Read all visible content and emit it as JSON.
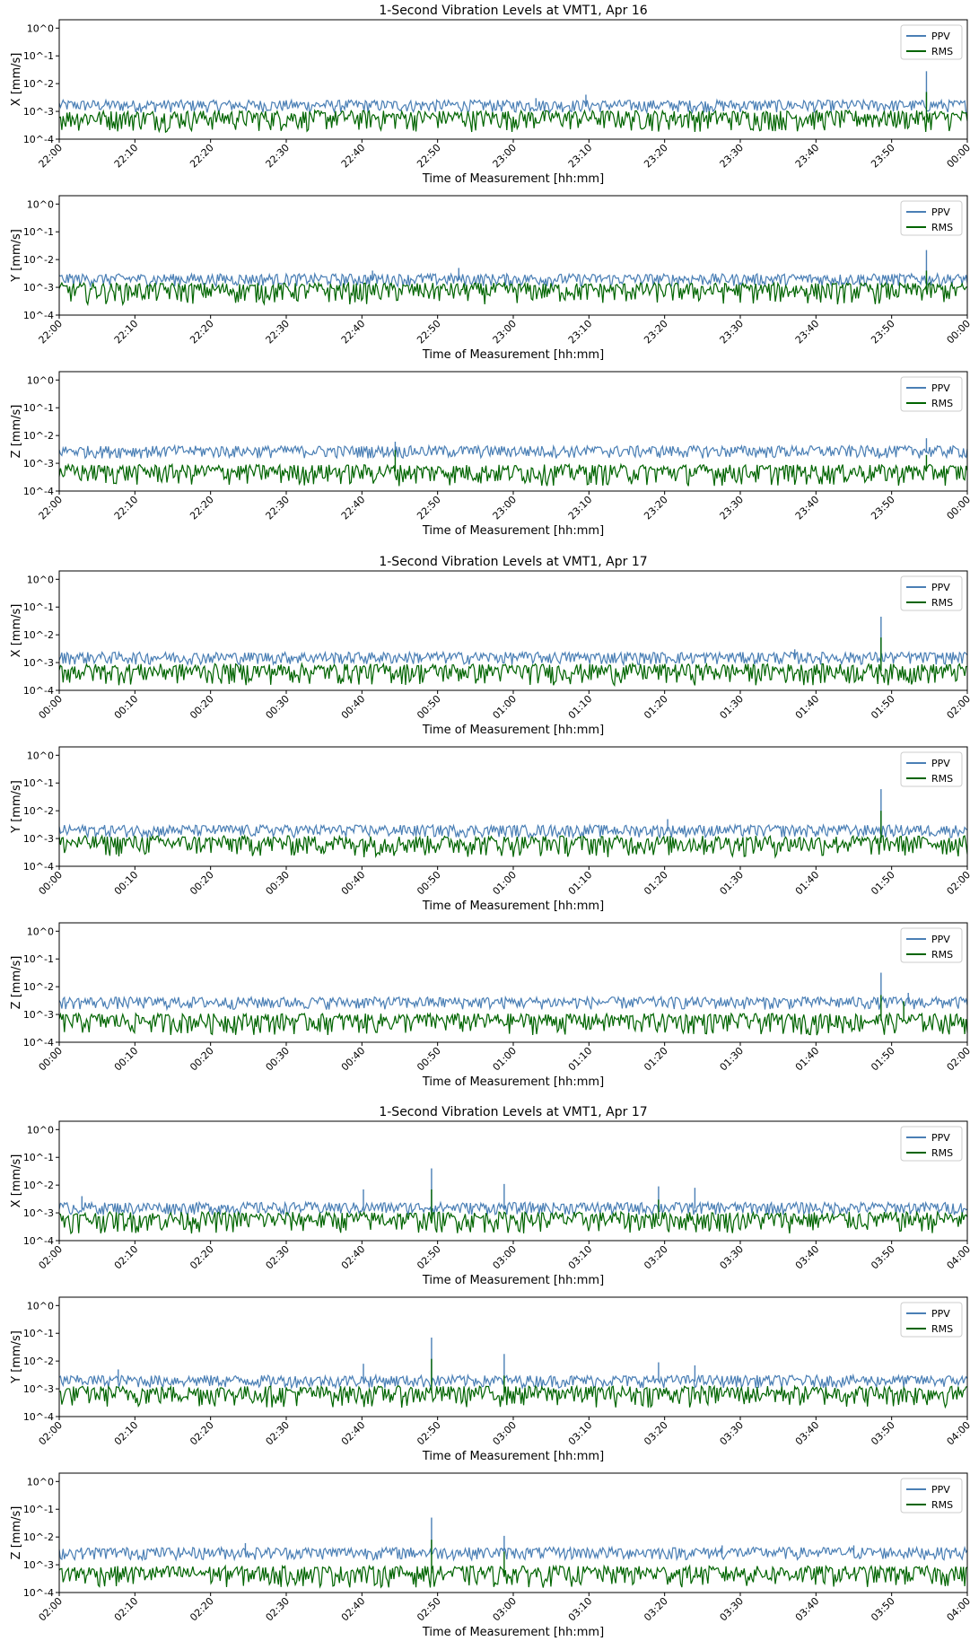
{
  "chart_data": [
    {
      "type": "line",
      "title": "1-Second Vibration Levels at VMT1, Apr 16",
      "ylabel": "X [mm/s]",
      "xlabel": "Time of Measurement [hh:mm]",
      "yscale": "log",
      "ylim": [
        0.0001,
        2
      ],
      "yticks": [
        "10^0",
        "10^-1",
        "10^-2",
        "10^-3",
        "10^-4"
      ],
      "xticks": [
        "22:00",
        "22:10",
        "22:20",
        "22:30",
        "22:40",
        "22:50",
        "23:00",
        "23:10",
        "23:20",
        "23:30",
        "23:40",
        "23:50",
        "00:00"
      ],
      "legend": "top-right",
      "series": [
        {
          "name": "PPV",
          "color": "#4a7fb5",
          "baseline": 0.0015,
          "spikes": [
            [
              95.5,
              0.028
            ],
            [
              58.0,
              0.004
            ],
            [
              52.5,
              0.003
            ]
          ]
        },
        {
          "name": "RMS",
          "color": "#006400",
          "baseline": 0.0006,
          "spikes": [
            [
              95.5,
              0.005
            ]
          ]
        }
      ]
    },
    {
      "type": "line",
      "title": "",
      "ylabel": "Y [mm/s]",
      "xlabel": "Time of Measurement [hh:mm]",
      "yscale": "log",
      "ylim": [
        0.0001,
        2
      ],
      "yticks": [
        "10^0",
        "10^-1",
        "10^-2",
        "10^-3",
        "10^-4"
      ],
      "xticks": [
        "22:00",
        "22:10",
        "22:20",
        "22:30",
        "22:40",
        "22:50",
        "23:00",
        "23:10",
        "23:20",
        "23:30",
        "23:40",
        "23:50",
        "00:00"
      ],
      "legend": "top-right",
      "series": [
        {
          "name": "PPV",
          "color": "#4a7fb5",
          "baseline": 0.0018,
          "spikes": [
            [
              95.5,
              0.022
            ],
            [
              44.0,
              0.005
            ],
            [
              34.5,
              0.004
            ]
          ]
        },
        {
          "name": "RMS",
          "color": "#006400",
          "baseline": 0.0008,
          "spikes": [
            [
              95.5,
              0.004
            ]
          ]
        }
      ]
    },
    {
      "type": "line",
      "title": "",
      "ylabel": "Z [mm/s]",
      "xlabel": "Time of Measurement [hh:mm]",
      "yscale": "log",
      "ylim": [
        0.0001,
        2
      ],
      "yticks": [
        "10^0",
        "10^-1",
        "10^-2",
        "10^-3",
        "10^-4"
      ],
      "xticks": [
        "22:00",
        "22:10",
        "22:20",
        "22:30",
        "22:40",
        "22:50",
        "23:00",
        "23:10",
        "23:20",
        "23:30",
        "23:40",
        "23:50",
        "00:00"
      ],
      "legend": "top-right",
      "series": [
        {
          "name": "PPV",
          "color": "#4a7fb5",
          "baseline": 0.0025,
          "spikes": [
            [
              95.5,
              0.008
            ],
            [
              37.0,
              0.006
            ]
          ]
        },
        {
          "name": "RMS",
          "color": "#006400",
          "baseline": 0.0005,
          "spikes": [
            [
              37.0,
              0.003
            ],
            [
              95.5,
              0.002
            ]
          ]
        }
      ]
    },
    {
      "type": "line",
      "title": "1-Second Vibration Levels at VMT1, Apr 17",
      "ylabel": "X [mm/s]",
      "xlabel": "Time of Measurement [hh:mm]",
      "yscale": "log",
      "ylim": [
        0.0001,
        2
      ],
      "yticks": [
        "10^0",
        "10^-1",
        "10^-2",
        "10^-3",
        "10^-4"
      ],
      "xticks": [
        "00:00",
        "00:10",
        "00:20",
        "00:30",
        "00:40",
        "00:50",
        "01:00",
        "01:10",
        "01:20",
        "01:30",
        "01:40",
        "01:50",
        "02:00"
      ],
      "legend": "top-right",
      "series": [
        {
          "name": "PPV",
          "color": "#4a7fb5",
          "baseline": 0.0014,
          "spikes": [
            [
              90.5,
              0.045
            ],
            [
              81.0,
              0.003
            ]
          ]
        },
        {
          "name": "RMS",
          "color": "#006400",
          "baseline": 0.0005,
          "spikes": [
            [
              90.5,
              0.008
            ]
          ]
        }
      ]
    },
    {
      "type": "line",
      "title": "",
      "ylabel": "Y [mm/s]",
      "xlabel": "Time of Measurement [hh:mm]",
      "yscale": "log",
      "ylim": [
        0.0001,
        2
      ],
      "yticks": [
        "10^0",
        "10^-1",
        "10^-2",
        "10^-3",
        "10^-4"
      ],
      "xticks": [
        "00:00",
        "00:10",
        "00:20",
        "00:30",
        "00:40",
        "00:50",
        "01:00",
        "01:10",
        "01:20",
        "01:30",
        "01:40",
        "01:50",
        "02:00"
      ],
      "legend": "top-right",
      "series": [
        {
          "name": "PPV",
          "color": "#4a7fb5",
          "baseline": 0.0018,
          "spikes": [
            [
              90.5,
              0.06
            ],
            [
              67.0,
              0.005
            ]
          ]
        },
        {
          "name": "RMS",
          "color": "#006400",
          "baseline": 0.0007,
          "spikes": [
            [
              90.5,
              0.01
            ]
          ]
        }
      ]
    },
    {
      "type": "line",
      "title": "",
      "ylabel": "Z [mm/s]",
      "xlabel": "Time of Measurement [hh:mm]",
      "yscale": "log",
      "ylim": [
        0.0001,
        2
      ],
      "yticks": [
        "10^0",
        "10^-1",
        "10^-2",
        "10^-3",
        "10^-4"
      ],
      "xticks": [
        "00:00",
        "00:10",
        "00:20",
        "00:30",
        "00:40",
        "00:50",
        "01:00",
        "01:10",
        "01:20",
        "01:30",
        "01:40",
        "01:50",
        "02:00"
      ],
      "legend": "top-right",
      "series": [
        {
          "name": "PPV",
          "color": "#4a7fb5",
          "baseline": 0.0025,
          "spikes": [
            [
              90.5,
              0.032
            ],
            [
              93.5,
              0.006
            ]
          ]
        },
        {
          "name": "RMS",
          "color": "#006400",
          "baseline": 0.0006,
          "spikes": [
            [
              90.5,
              0.005
            ],
            [
              93.0,
              0.003
            ]
          ]
        }
      ]
    },
    {
      "type": "line",
      "title": "1-Second Vibration Levels at VMT1, Apr 17",
      "ylabel": "X [mm/s]",
      "xlabel": "Time of Measurement [hh:mm]",
      "yscale": "log",
      "ylim": [
        0.0001,
        2
      ],
      "yticks": [
        "10^0",
        "10^-1",
        "10^-2",
        "10^-3",
        "10^-4"
      ],
      "xticks": [
        "02:00",
        "02:10",
        "02:20",
        "02:30",
        "02:40",
        "02:50",
        "03:00",
        "03:10",
        "03:20",
        "03:30",
        "03:40",
        "03:50",
        "04:00"
      ],
      "legend": "top-right",
      "series": [
        {
          "name": "PPV",
          "color": "#4a7fb5",
          "baseline": 0.0014,
          "spikes": [
            [
              41.0,
              0.04
            ],
            [
              49.0,
              0.011
            ],
            [
              66.0,
              0.009
            ],
            [
              70.0,
              0.008
            ],
            [
              33.5,
              0.007
            ],
            [
              2.5,
              0.004
            ]
          ]
        },
        {
          "name": "RMS",
          "color": "#006400",
          "baseline": 0.0006,
          "spikes": [
            [
              41.0,
              0.007
            ],
            [
              66.0,
              0.003
            ]
          ]
        }
      ]
    },
    {
      "type": "line",
      "title": "",
      "ylabel": "Y [mm/s]",
      "xlabel": "Time of Measurement [hh:mm]",
      "yscale": "log",
      "ylim": [
        0.0001,
        2
      ],
      "yticks": [
        "10^0",
        "10^-1",
        "10^-2",
        "10^-3",
        "10^-4"
      ],
      "xticks": [
        "02:00",
        "02:10",
        "02:20",
        "02:30",
        "02:40",
        "02:50",
        "03:00",
        "03:10",
        "03:20",
        "03:30",
        "03:40",
        "03:50",
        "04:00"
      ],
      "legend": "top-right",
      "series": [
        {
          "name": "PPV",
          "color": "#4a7fb5",
          "baseline": 0.0018,
          "spikes": [
            [
              41.0,
              0.07
            ],
            [
              49.0,
              0.018
            ],
            [
              66.0,
              0.009
            ],
            [
              33.5,
              0.008
            ],
            [
              70.0,
              0.007
            ],
            [
              6.5,
              0.005
            ]
          ]
        },
        {
          "name": "RMS",
          "color": "#006400",
          "baseline": 0.0007,
          "spikes": [
            [
              41.0,
              0.012
            ],
            [
              49.0,
              0.003
            ]
          ]
        }
      ]
    },
    {
      "type": "line",
      "title": "",
      "ylabel": "Z [mm/s]",
      "xlabel": "Time of Measurement [hh:mm]",
      "yscale": "log",
      "ylim": [
        0.0001,
        2
      ],
      "yticks": [
        "10^0",
        "10^-1",
        "10^-2",
        "10^-3",
        "10^-4"
      ],
      "xticks": [
        "02:00",
        "02:10",
        "02:20",
        "02:30",
        "02:40",
        "02:50",
        "03:00",
        "03:10",
        "03:20",
        "03:30",
        "03:40",
        "03:50",
        "04:00"
      ],
      "legend": "top-right",
      "series": [
        {
          "name": "PPV",
          "color": "#4a7fb5",
          "baseline": 0.0025,
          "spikes": [
            [
              41.0,
              0.05
            ],
            [
              49.0,
              0.011
            ],
            [
              20.5,
              0.006
            ],
            [
              87.5,
              0.005
            ],
            [
              73.0,
              0.005
            ]
          ]
        },
        {
          "name": "RMS",
          "color": "#006400",
          "baseline": 0.0005,
          "spikes": [
            [
              41.0,
              0.008
            ],
            [
              49.0,
              0.003
            ]
          ]
        }
      ]
    }
  ]
}
